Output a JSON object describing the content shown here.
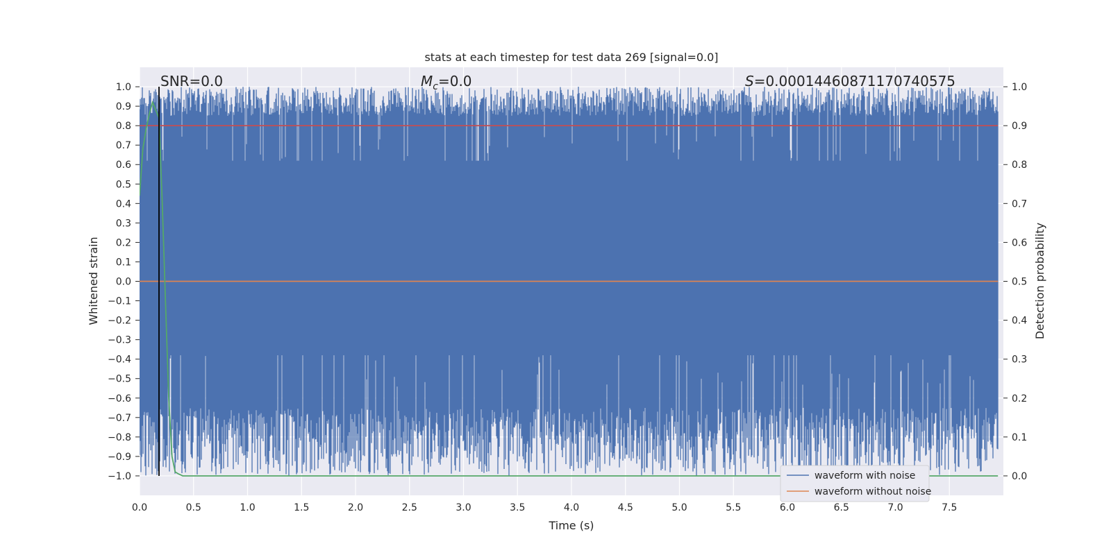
{
  "chart_data": {
    "type": "line",
    "title": "stats at each timestep for test data 269 [signal=0.0]",
    "xlabel": "Time (s)",
    "ylabel_left": "Whitened strain",
    "ylabel_right": "Detection probability",
    "xlim": [
      0.0,
      8.0
    ],
    "ylim_left": [
      -1.1,
      1.1
    ],
    "ylim_right": [
      -0.05,
      1.05
    ],
    "x_ticks": [
      "0.0",
      "0.5",
      "1.0",
      "1.5",
      "2.0",
      "2.5",
      "3.0",
      "3.5",
      "4.0",
      "4.5",
      "5.0",
      "5.5",
      "6.0",
      "6.5",
      "7.0",
      "7.5"
    ],
    "y_ticks_left": [
      "1.0",
      "0.9",
      "0.8",
      "0.7",
      "0.6",
      "0.5",
      "0.4",
      "0.3",
      "0.2",
      "0.1",
      "0.0",
      "−0.1",
      "−0.2",
      "−0.3",
      "−0.4",
      "−0.5",
      "−0.6",
      "−0.7",
      "−0.8",
      "−0.9",
      "−1.0"
    ],
    "y_ticks_right": [
      "1.0",
      "0.9",
      "0.8",
      "0.7",
      "0.6",
      "0.5",
      "0.4",
      "0.3",
      "0.2",
      "0.1",
      "0.0"
    ],
    "grid": true,
    "legend_position": "lower right",
    "annotations": {
      "snr": "SNR=0.0",
      "mc_symbol": "M",
      "mc_sub": "c",
      "mc_value": "=0.0",
      "s_symbol": "S",
      "s_value": "=0.0001446087117074057​5"
    },
    "vertical_marker_x": 0.18,
    "series": [
      {
        "name": "waveform with noise",
        "axis": "left",
        "color": "#4c72b0",
        "description_range": [
          -1.0,
          1.0
        ]
      },
      {
        "name": "waveform without noise",
        "axis": "left",
        "color": "#dd8452",
        "x": [
          0.0,
          7.95
        ],
        "y": [
          0.0,
          0.0
        ]
      },
      {
        "axis": "right",
        "color": "#c44e52",
        "x": [
          0.0,
          7.95
        ],
        "y": [
          0.9,
          0.9
        ]
      },
      {
        "axis": "right",
        "color": "#55a868",
        "x": [
          0.0,
          0.03,
          0.06,
          0.09,
          0.12,
          0.15,
          0.18,
          0.21,
          0.24,
          0.27,
          0.3,
          0.33,
          0.36,
          0.4,
          7.95
        ],
        "y": [
          0.72,
          0.84,
          0.89,
          0.93,
          0.96,
          0.94,
          0.92,
          0.7,
          0.45,
          0.2,
          0.05,
          0.01,
          0.005,
          0.0,
          0.0
        ]
      }
    ]
  }
}
